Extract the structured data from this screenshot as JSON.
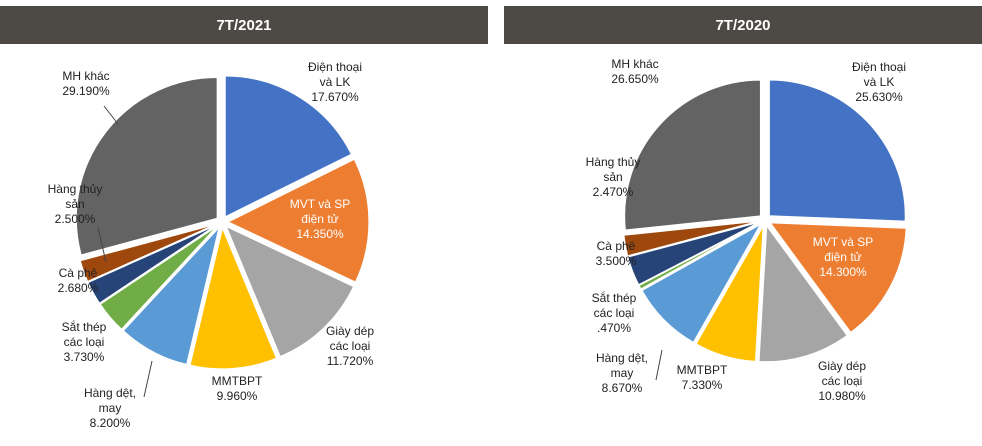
{
  "colors": {
    "title_bar": "#4d4a45",
    "Điện thoại và LK": "#4472c4",
    "MVT và SP điện tử": "#ed7d31",
    "Giày dép các loại": "#a5a5a5",
    "MMTBPT": "#ffc000",
    "Hàng dệt, may": "#5b9bd5",
    "Sắt thép các loại": "#70ad47",
    "Cà phê": "#264478",
    "Hàng thủy sản": "#9e480e",
    "MH khác": "#636363"
  },
  "chart_data": [
    {
      "type": "pie",
      "title": "7T/2021",
      "slices": [
        {
          "name": "Điện thoại và LK",
          "lines": [
            "Điện thoại",
            "và LK"
          ],
          "value": 17.67,
          "value_label": "17.670%"
        },
        {
          "name": "MVT và SP điện tử",
          "lines": [
            "MVT và SP",
            "điện tử"
          ],
          "value": 14.35,
          "value_label": "14.350%"
        },
        {
          "name": "Giày dép các loại",
          "lines": [
            "Giày dép",
            "các loại"
          ],
          "value": 11.72,
          "value_label": "11.720%"
        },
        {
          "name": "MMTBPT",
          "lines": [
            "MMTBPT"
          ],
          "value": 9.96,
          "value_label": "9.960%"
        },
        {
          "name": "Hàng dệt, may",
          "lines": [
            "Hàng dệt,",
            "may"
          ],
          "value": 8.2,
          "value_label": "8.200%"
        },
        {
          "name": "Sắt thép các loại",
          "lines": [
            "Sắt thép",
            "các loại"
          ],
          "value": 3.73,
          "value_label": "3.730%"
        },
        {
          "name": "Cà phê",
          "lines": [
            "Cà phê"
          ],
          "value": 2.68,
          "value_label": "2.680%"
        },
        {
          "name": "Hàng thủy sản",
          "lines": [
            "Hàng thủy",
            "sản"
          ],
          "value": 2.5,
          "value_label": "2.500%"
        },
        {
          "name": "MH khác",
          "lines": [
            "MH khác"
          ],
          "value": 29.19,
          "value_label": "29.190%"
        }
      ]
    },
    {
      "type": "pie",
      "title": "7T/2020",
      "slices": [
        {
          "name": "Điện thoại và LK",
          "lines": [
            "Điện thoại",
            "và LK"
          ],
          "value": 25.63,
          "value_label": "25.630%"
        },
        {
          "name": "MVT và SP điện tử",
          "lines": [
            "MVT và SP",
            "điện tử"
          ],
          "value": 14.3,
          "value_label": "14.300%"
        },
        {
          "name": "Giày dép các loại",
          "lines": [
            "Giày dép",
            "các loại"
          ],
          "value": 10.98,
          "value_label": "10.980%"
        },
        {
          "name": "MMTBPT",
          "lines": [
            "MMTBPT"
          ],
          "value": 7.33,
          "value_label": "7.330%"
        },
        {
          "name": "Hàng dệt, may",
          "lines": [
            "Hàng dệt,",
            "may"
          ],
          "value": 8.67,
          "value_label": "8.670%"
        },
        {
          "name": "Sắt thép các loại",
          "lines": [
            "Sắt thép",
            "các loại"
          ],
          "value": 0.47,
          "value_label": ".470%"
        },
        {
          "name": "Cà phê",
          "lines": [
            "Cà phê"
          ],
          "value": 3.5,
          "value_label": "3.500%"
        },
        {
          "name": "Hàng thủy sản",
          "lines": [
            "Hàng thủy",
            "sản"
          ],
          "value": 2.47,
          "value_label": "2.470%"
        },
        {
          "name": "MH khác",
          "lines": [
            "MH khác"
          ],
          "value": 26.65,
          "value_label": "26.650%"
        }
      ]
    }
  ]
}
